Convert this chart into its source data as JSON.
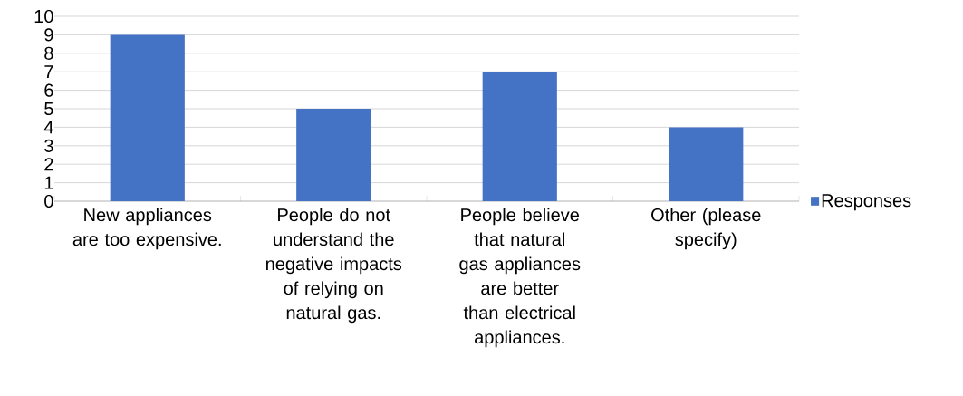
{
  "chart_data": {
    "type": "bar",
    "categories": [
      "New appliances are too expensive.",
      "People do not understand the negative impacts of relying on natural gas.",
      "People believe that natural gas appliances are better than electrical appliances.",
      "Other (please specify)"
    ],
    "series": [
      {
        "name": "Responses",
        "color": "#4472c4",
        "values": [
          9,
          5,
          7,
          4
        ]
      }
    ],
    "ylim": [
      0,
      10
    ],
    "yticks": [
      0,
      1,
      2,
      3,
      4,
      5,
      6,
      7,
      8,
      9,
      10
    ],
    "grid": "y",
    "legend": "right"
  }
}
